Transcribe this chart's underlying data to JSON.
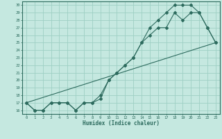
{
  "title": "",
  "xlabel": "Humidex (Indice chaleur)",
  "ylabel": "",
  "bg_color": "#c5e8e0",
  "line_color": "#2d6b5e",
  "grid_color": "#9ecfc4",
  "xlim": [
    -0.5,
    23.5
  ],
  "ylim": [
    15.5,
    30.5
  ],
  "xticks": [
    0,
    1,
    2,
    3,
    4,
    5,
    6,
    7,
    8,
    9,
    10,
    11,
    12,
    13,
    14,
    15,
    16,
    17,
    18,
    19,
    20,
    21,
    22,
    23
  ],
  "yticks": [
    16,
    17,
    18,
    19,
    20,
    21,
    22,
    23,
    24,
    25,
    26,
    27,
    28,
    29,
    30
  ],
  "line1_x": [
    0,
    1,
    2,
    3,
    4,
    5,
    6,
    7,
    8,
    9,
    10,
    11,
    12,
    13,
    14,
    15,
    16,
    17,
    18,
    19,
    20,
    21,
    22,
    23
  ],
  "line1_y": [
    17,
    16,
    16,
    17,
    17,
    17,
    16,
    17,
    17,
    17.5,
    20,
    21,
    22,
    23,
    25,
    26,
    27,
    27,
    29,
    28,
    29,
    29,
    27,
    25
  ],
  "line2_x": [
    0,
    1,
    2,
    3,
    4,
    5,
    6,
    7,
    8,
    9,
    10,
    11,
    12,
    13,
    14,
    15,
    16,
    17,
    18,
    19,
    20,
    21,
    22,
    23
  ],
  "line2_y": [
    17,
    16,
    16,
    17,
    17,
    17,
    16,
    17,
    17,
    18,
    20,
    21,
    22,
    23,
    25,
    27,
    28,
    29,
    30,
    30,
    30,
    29,
    27,
    25
  ],
  "line3_x": [
    0,
    23
  ],
  "line3_y": [
    17,
    25
  ]
}
